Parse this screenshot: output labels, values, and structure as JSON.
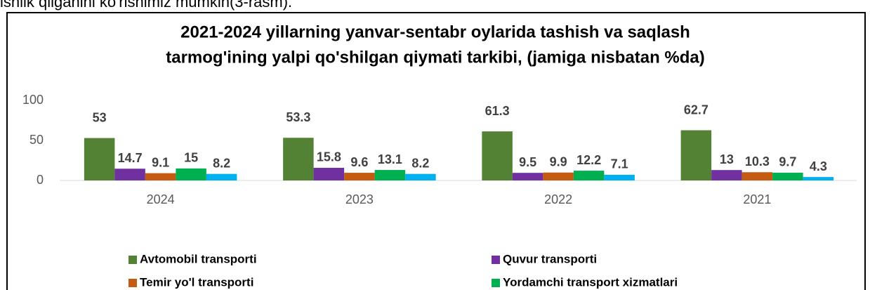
{
  "page_text": "ishlik qilganini ko'rishimiz mumkin(3-rasm).",
  "chart_data": {
    "type": "bar",
    "title": [
      "2021-2024 yillarning yanvar-sentabr oylarida tashish va saqlash",
      "tarmog'ining yalpi qo'shilgan qiymati tarkibi, (jamiga nisbatan %da)"
    ],
    "categories": [
      "2024",
      "2023",
      "2022",
      "2021"
    ],
    "series": [
      {
        "name": "Avtomobil transporti",
        "color": "#548235",
        "values": [
          53,
          53.3,
          61.3,
          62.7
        ]
      },
      {
        "name": "Quvur transporti",
        "color": "#7030a0",
        "values": [
          14.7,
          15.8,
          9.5,
          13
        ]
      },
      {
        "name": "Temir yo'l transporti",
        "color": "#c55a11",
        "values": [
          9.1,
          9.6,
          9.9,
          10.3
        ]
      },
      {
        "name": "Yordamchi transport xizmatlari",
        "color": "#00b050",
        "values": [
          15,
          13.1,
          12.2,
          9.7
        ]
      },
      {
        "color": "#00b0f0",
        "values": [
          8.2,
          8.2,
          7.1,
          4.3
        ]
      }
    ],
    "ylim": [
      0,
      100
    ],
    "yticks": [
      0,
      50,
      100
    ],
    "grid": false,
    "legend": "bottom"
  }
}
